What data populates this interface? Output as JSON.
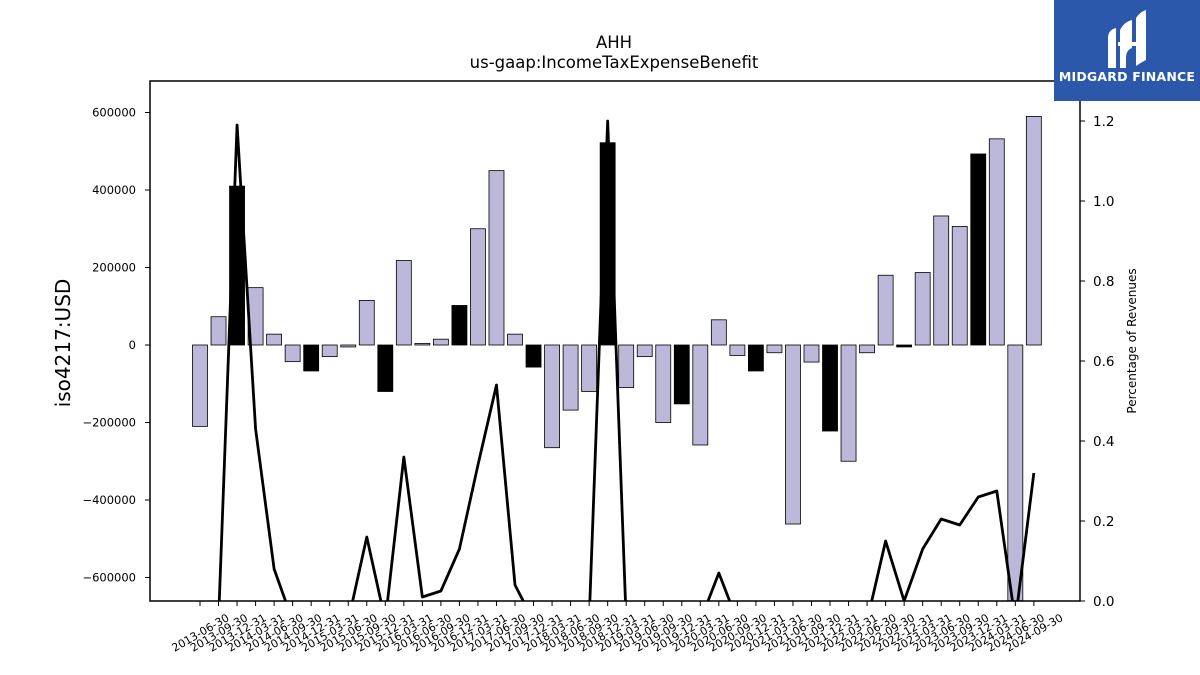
{
  "chart_data": {
    "type": "bar",
    "title": "AHH",
    "subtitle": "us-gaap:IncomeTaxExpenseBenefit",
    "ylabel": "iso4217:USD",
    "y2label": "Percentage of Revenues",
    "ylim": [
      -660000,
      680000
    ],
    "y2lim": [
      0,
      1.3
    ],
    "yticks": [
      -600000,
      -400000,
      -200000,
      0,
      200000,
      400000,
      600000
    ],
    "y2ticks": [
      0.0,
      0.2,
      0.4,
      0.6,
      0.8,
      1.0,
      1.2
    ],
    "bar_colors": {
      "quarter": "#bcb8da",
      "year_end": "#000000"
    },
    "line_color": "#000000",
    "categories": [
      "2013-06-30",
      "2013-09-30",
      "2013-12-31",
      "2014-03-31",
      "2014-06-30",
      "2014-09-30",
      "2014-12-31",
      "2015-03-31",
      "2015-06-30",
      "2015-09-30",
      "2015-12-31",
      "2016-03-31",
      "2016-06-30",
      "2016-09-30",
      "2016-12-31",
      "2017-03-31",
      "2017-06-30",
      "2017-09-30",
      "2017-12-31",
      "2018-03-31",
      "2018-06-30",
      "2018-09-30",
      "2018-12-31",
      "2019-03-31",
      "2019-06-30",
      "2019-09-30",
      "2019-12-31",
      "2020-03-31",
      "2020-06-30",
      "2020-09-30",
      "2020-12-31",
      "2021-03-31",
      "2021-06-30",
      "2021-09-30",
      "2021-12-31",
      "2022-03-31",
      "2022-06-30",
      "2022-09-30",
      "2022-12-31",
      "2023-03-31",
      "2023-06-30",
      "2023-09-30",
      "2023-12-31",
      "2024-03-31",
      "2024-06-30",
      "2024-09-30"
    ],
    "values": [
      -210000,
      73000,
      410000,
      148000,
      28000,
      -43000,
      -67000,
      -30000,
      -5000,
      115000,
      -120000,
      218000,
      4000,
      15000,
      102000,
      300000,
      450000,
      28000,
      -57000,
      -265000,
      -168000,
      -120000,
      522000,
      -110000,
      -30000,
      -200000,
      -152000,
      -258000,
      65000,
      -27000,
      -67000,
      -20000,
      -462000,
      -44000,
      -222000,
      -300000,
      -20000,
      180000,
      -5000,
      187000,
      333000,
      306000,
      493000,
      532000,
      -660000,
      590000
    ],
    "year_end": [
      false,
      false,
      true,
      false,
      false,
      false,
      true,
      false,
      false,
      false,
      true,
      false,
      false,
      false,
      true,
      false,
      false,
      false,
      true,
      false,
      false,
      false,
      true,
      false,
      false,
      false,
      true,
      false,
      false,
      false,
      true,
      false,
      false,
      false,
      true,
      false,
      false,
      false,
      true,
      false,
      false,
      false,
      true,
      false,
      false,
      false
    ],
    "pct_revenue": [
      -0.05,
      -0.05,
      1.19,
      0.43,
      0.08,
      -0.05,
      -0.05,
      -0.05,
      -0.05,
      0.16,
      -0.05,
      0.36,
      0.01,
      0.025,
      0.13,
      0.34,
      0.54,
      0.04,
      -0.05,
      -0.05,
      -0.05,
      -0.05,
      1.2,
      -0.05,
      -0.05,
      -0.05,
      -0.05,
      -0.05,
      0.07,
      -0.05,
      -0.05,
      -0.05,
      -0.05,
      -0.05,
      -0.05,
      -0.05,
      -0.05,
      0.15,
      0.0,
      0.13,
      0.205,
      0.19,
      0.26,
      0.275,
      -0.05,
      0.32
    ]
  },
  "logo": {
    "text": "MIDGARD FINANCE"
  }
}
